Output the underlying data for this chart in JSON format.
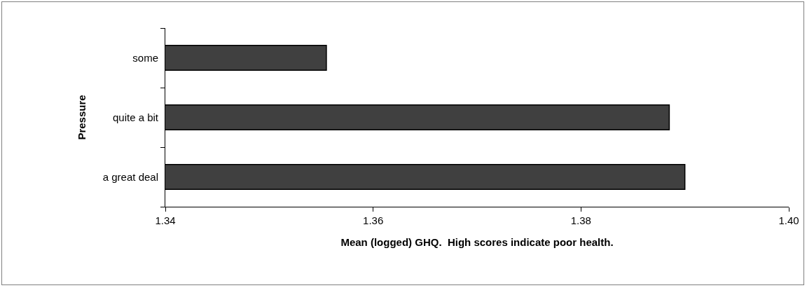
{
  "chart_data": {
    "type": "bar",
    "orientation": "horizontal",
    "categories": [
      "some",
      "quite a bit",
      "a great deal"
    ],
    "values": [
      1.3555,
      1.3885,
      1.39
    ],
    "color": "#404040",
    "xlim": [
      1.34,
      1.4
    ],
    "xticks": [
      {
        "value": 1.34,
        "label": "1.34"
      },
      {
        "value": 1.36,
        "label": "1.36"
      },
      {
        "value": 1.38,
        "label": "1.38"
      },
      {
        "value": 1.4,
        "label": "1.40"
      }
    ],
    "xlabel": "Mean (logged) GHQ.  High scores indicate poor health.",
    "ylabel": "Pressure",
    "grid": false,
    "legend": false
  }
}
